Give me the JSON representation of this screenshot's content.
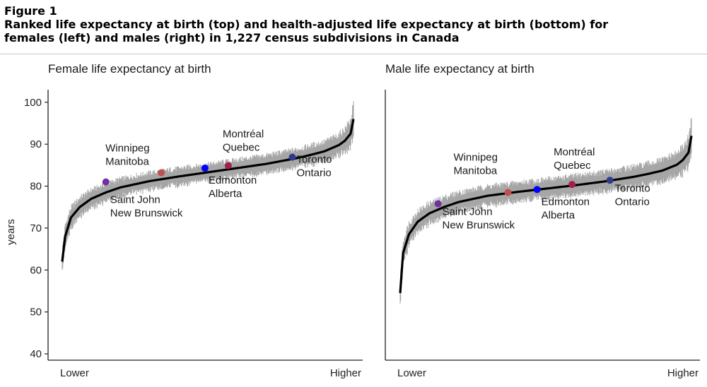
{
  "header": {
    "figure_label": "Figure 1",
    "caption_line1": "Ranked life expectancy at birth (top) and health-adjusted life expectancy at birth (bottom) for",
    "caption_line2": "females (left) and males (right) in 1,227 census subdivisions in Canada"
  },
  "colors": {
    "band": "#a6a6a6",
    "curve": "#000000",
    "axis": "#222222"
  },
  "chart_data": [
    {
      "type": "line",
      "title": "Female life expectancy at birth",
      "xlabel": "",
      "ylabel": "years",
      "x_tick_labels": [
        "Lower",
        "Higher"
      ],
      "y_ticks": [
        40,
        50,
        60,
        70,
        80,
        90,
        100
      ],
      "ylim": [
        38.5,
        103
      ],
      "n_subdivisions": 1227,
      "median_curve": {
        "rank_fraction": [
          0,
          0.01,
          0.03,
          0.06,
          0.1,
          0.15,
          0.2,
          0.3,
          0.4,
          0.5,
          0.6,
          0.7,
          0.8,
          0.85,
          0.9,
          0.95,
          0.97,
          0.99,
          1.0
        ],
        "years": [
          62,
          68,
          72.5,
          75,
          77,
          78.5,
          79.7,
          81.2,
          82.3,
          83.3,
          84.3,
          85.3,
          86.6,
          87.4,
          88.3,
          89.8,
          90.8,
          92.5,
          96
        ]
      },
      "interval_halfwidth": {
        "rank_fraction": [
          0,
          0.02,
          0.05,
          0.1,
          0.2,
          0.5,
          0.8,
          0.9,
          0.95,
          1.0
        ],
        "years": [
          3.0,
          2.8,
          2.6,
          2.4,
          2.3,
          2.2,
          2.4,
          2.6,
          2.8,
          4.0
        ]
      },
      "highlighted_cities": [
        {
          "city": "Saint John",
          "province": "New Brunswick",
          "rank_fraction": 0.15,
          "years": 81.0,
          "color": "#7030a0"
        },
        {
          "city": "Winnipeg",
          "province": "Manitoba",
          "rank_fraction": 0.34,
          "years": 83.2,
          "color": "#c0504d"
        },
        {
          "city": "Edmonton",
          "province": "Alberta",
          "rank_fraction": 0.49,
          "years": 84.3,
          "color": "#0000ff"
        },
        {
          "city": "Montréal",
          "province": "Quebec",
          "rank_fraction": 0.57,
          "years": 84.9,
          "color": "#a0204a"
        },
        {
          "city": "Toronto",
          "province": "Ontario",
          "rank_fraction": 0.79,
          "years": 86.9,
          "color": "#2e3a8c"
        }
      ]
    },
    {
      "type": "line",
      "title": "Male life expectancy at birth",
      "xlabel": "",
      "ylabel": "",
      "x_tick_labels": [
        "Lower",
        "Higher"
      ],
      "y_ticks": [],
      "ylim": [
        38.5,
        103
      ],
      "n_subdivisions": 1227,
      "median_curve": {
        "rank_fraction": [
          0,
          0.01,
          0.03,
          0.06,
          0.1,
          0.15,
          0.2,
          0.3,
          0.4,
          0.5,
          0.6,
          0.7,
          0.8,
          0.85,
          0.9,
          0.95,
          0.97,
          0.99,
          1.0
        ],
        "years": [
          54.5,
          64,
          68.5,
          71.5,
          73.5,
          75,
          76.2,
          77.7,
          78.6,
          79.4,
          80.2,
          81.1,
          82.2,
          82.9,
          83.7,
          85.1,
          86.2,
          88.0,
          92
        ]
      },
      "interval_halfwidth": {
        "rank_fraction": [
          0,
          0.02,
          0.05,
          0.1,
          0.2,
          0.5,
          0.8,
          0.9,
          0.95,
          1.0
        ],
        "years": [
          3.5,
          3.2,
          2.9,
          2.7,
          2.6,
          2.5,
          2.7,
          2.9,
          3.1,
          4.2
        ]
      },
      "highlighted_cities": [
        {
          "city": "Saint John",
          "province": "New Brunswick",
          "rank_fraction": 0.13,
          "years": 75.8,
          "color": "#7030a0"
        },
        {
          "city": "Winnipeg",
          "province": "Manitoba",
          "rank_fraction": 0.37,
          "years": 78.5,
          "color": "#c0504d"
        },
        {
          "city": "Edmonton",
          "province": "Alberta",
          "rank_fraction": 0.47,
          "years": 79.2,
          "color": "#0000ff"
        },
        {
          "city": "Montréal",
          "province": "Quebec",
          "rank_fraction": 0.59,
          "years": 80.4,
          "color": "#a0204a"
        },
        {
          "city": "Toronto",
          "province": "Ontario",
          "rank_fraction": 0.72,
          "years": 81.4,
          "color": "#2e3a8c"
        }
      ]
    }
  ]
}
